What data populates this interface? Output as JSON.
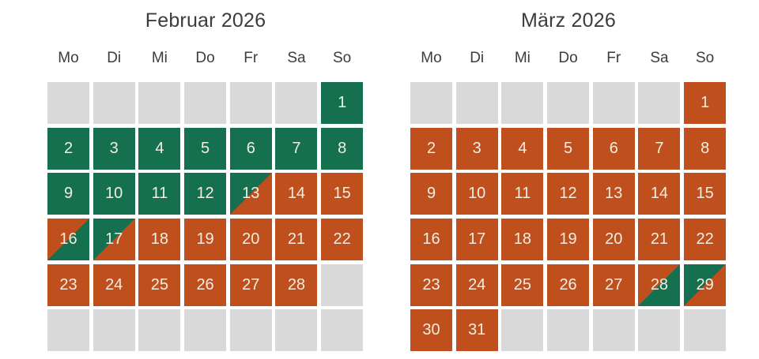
{
  "colors": {
    "available": "#14704e",
    "booked": "#c04f1e",
    "empty": "#d9d9d9",
    "day_number_text": "#f2eee1",
    "heading_text": "#3c3c3c",
    "page_background": "#ffffff"
  },
  "weekday_headers": [
    "Mo",
    "Di",
    "Mi",
    "Do",
    "Fr",
    "Sa",
    "So"
  ],
  "calendars": [
    {
      "title": "Februar 2026",
      "weeks": [
        [
          {
            "day": "",
            "state": "empty"
          },
          {
            "day": "",
            "state": "empty"
          },
          {
            "day": "",
            "state": "empty"
          },
          {
            "day": "",
            "state": "empty"
          },
          {
            "day": "",
            "state": "empty"
          },
          {
            "day": "",
            "state": "empty"
          },
          {
            "day": "1",
            "state": "available"
          }
        ],
        [
          {
            "day": "2",
            "state": "available"
          },
          {
            "day": "3",
            "state": "available"
          },
          {
            "day": "4",
            "state": "available"
          },
          {
            "day": "5",
            "state": "available"
          },
          {
            "day": "6",
            "state": "available"
          },
          {
            "day": "7",
            "state": "available"
          },
          {
            "day": "8",
            "state": "available"
          }
        ],
        [
          {
            "day": "9",
            "state": "available"
          },
          {
            "day": "10",
            "state": "available"
          },
          {
            "day": "11",
            "state": "available"
          },
          {
            "day": "12",
            "state": "available"
          },
          {
            "day": "13",
            "state": "split-available-booked"
          },
          {
            "day": "14",
            "state": "booked"
          },
          {
            "day": "15",
            "state": "booked"
          }
        ],
        [
          {
            "day": "16",
            "state": "split-booked-available"
          },
          {
            "day": "17",
            "state": "split-available-booked"
          },
          {
            "day": "18",
            "state": "booked"
          },
          {
            "day": "19",
            "state": "booked"
          },
          {
            "day": "20",
            "state": "booked"
          },
          {
            "day": "21",
            "state": "booked"
          },
          {
            "day": "22",
            "state": "booked"
          }
        ],
        [
          {
            "day": "23",
            "state": "booked"
          },
          {
            "day": "24",
            "state": "booked"
          },
          {
            "day": "25",
            "state": "booked"
          },
          {
            "day": "26",
            "state": "booked"
          },
          {
            "day": "27",
            "state": "booked"
          },
          {
            "day": "28",
            "state": "booked"
          },
          {
            "day": "",
            "state": "empty"
          }
        ],
        [
          {
            "day": "",
            "state": "empty"
          },
          {
            "day": "",
            "state": "empty"
          },
          {
            "day": "",
            "state": "empty"
          },
          {
            "day": "",
            "state": "empty"
          },
          {
            "day": "",
            "state": "empty"
          },
          {
            "day": "",
            "state": "empty"
          },
          {
            "day": "",
            "state": "empty"
          }
        ]
      ]
    },
    {
      "title": "März 2026",
      "weeks": [
        [
          {
            "day": "",
            "state": "empty"
          },
          {
            "day": "",
            "state": "empty"
          },
          {
            "day": "",
            "state": "empty"
          },
          {
            "day": "",
            "state": "empty"
          },
          {
            "day": "",
            "state": "empty"
          },
          {
            "day": "",
            "state": "empty"
          },
          {
            "day": "1",
            "state": "booked"
          }
        ],
        [
          {
            "day": "2",
            "state": "booked"
          },
          {
            "day": "3",
            "state": "booked"
          },
          {
            "day": "4",
            "state": "booked"
          },
          {
            "day": "5",
            "state": "booked"
          },
          {
            "day": "6",
            "state": "booked"
          },
          {
            "day": "7",
            "state": "booked"
          },
          {
            "day": "8",
            "state": "booked"
          }
        ],
        [
          {
            "day": "9",
            "state": "booked"
          },
          {
            "day": "10",
            "state": "booked"
          },
          {
            "day": "11",
            "state": "booked"
          },
          {
            "day": "12",
            "state": "booked"
          },
          {
            "day": "13",
            "state": "booked"
          },
          {
            "day": "14",
            "state": "booked"
          },
          {
            "day": "15",
            "state": "booked"
          }
        ],
        [
          {
            "day": "16",
            "state": "booked"
          },
          {
            "day": "17",
            "state": "booked"
          },
          {
            "day": "18",
            "state": "booked"
          },
          {
            "day": "19",
            "state": "booked"
          },
          {
            "day": "20",
            "state": "booked"
          },
          {
            "day": "21",
            "state": "booked"
          },
          {
            "day": "22",
            "state": "booked"
          }
        ],
        [
          {
            "day": "23",
            "state": "booked"
          },
          {
            "day": "24",
            "state": "booked"
          },
          {
            "day": "25",
            "state": "booked"
          },
          {
            "day": "26",
            "state": "booked"
          },
          {
            "day": "27",
            "state": "booked"
          },
          {
            "day": "28",
            "state": "split-booked-available"
          },
          {
            "day": "29",
            "state": "split-available-booked"
          }
        ],
        [
          {
            "day": "30",
            "state": "booked"
          },
          {
            "day": "31",
            "state": "booked"
          },
          {
            "day": "",
            "state": "empty"
          },
          {
            "day": "",
            "state": "empty"
          },
          {
            "day": "",
            "state": "empty"
          },
          {
            "day": "",
            "state": "empty"
          },
          {
            "day": "",
            "state": "empty"
          }
        ]
      ]
    }
  ]
}
